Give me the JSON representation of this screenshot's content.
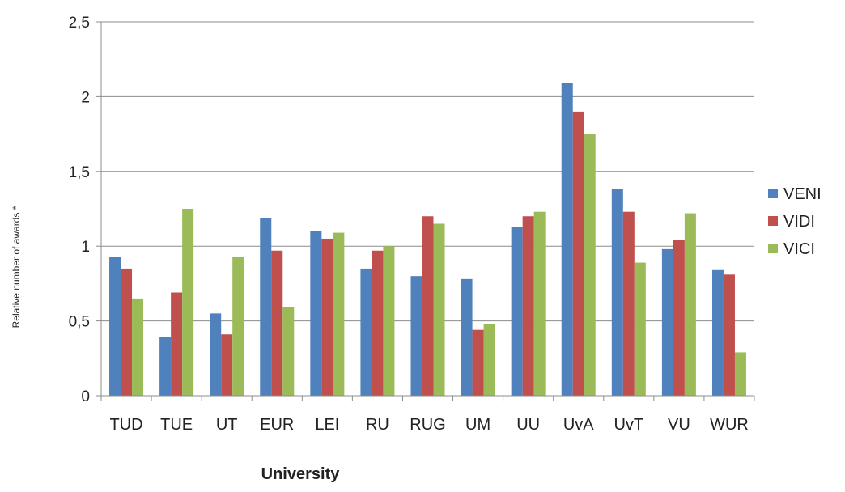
{
  "chart_data": {
    "type": "bar",
    "xlabel": "University",
    "ylabel": "Relative number of awards *",
    "ylim": [
      0,
      2.5
    ],
    "yticks": [
      {
        "value": 0,
        "label": "0"
      },
      {
        "value": 0.5,
        "label": "0,5"
      },
      {
        "value": 1,
        "label": "1"
      },
      {
        "value": 1.5,
        "label": "1,5"
      },
      {
        "value": 2,
        "label": "2"
      },
      {
        "value": 2.5,
        "label": "2,5"
      }
    ],
    "grid": true,
    "legend": "right",
    "categories": [
      "TUD",
      "TUE",
      "UT",
      "EUR",
      "LEI",
      "RU",
      "RUG",
      "UM",
      "UU",
      "UvA",
      "UvT",
      "VU",
      "WUR"
    ],
    "series": [
      {
        "name": "VENI",
        "color": "#4F81BD",
        "values": [
          0.93,
          0.39,
          0.55,
          1.19,
          1.1,
          0.85,
          0.8,
          0.78,
          1.13,
          2.09,
          1.38,
          0.98,
          0.84
        ]
      },
      {
        "name": "VIDI",
        "color": "#C0504D",
        "values": [
          0.85,
          0.69,
          0.41,
          0.97,
          1.05,
          0.97,
          1.2,
          0.44,
          1.2,
          1.9,
          1.23,
          1.04,
          0.81
        ]
      },
      {
        "name": "VICI",
        "color": "#9BBB59",
        "values": [
          0.65,
          1.25,
          0.93,
          0.59,
          1.09,
          1.0,
          1.15,
          0.48,
          1.23,
          1.75,
          0.89,
          1.22,
          0.29
        ]
      }
    ]
  }
}
